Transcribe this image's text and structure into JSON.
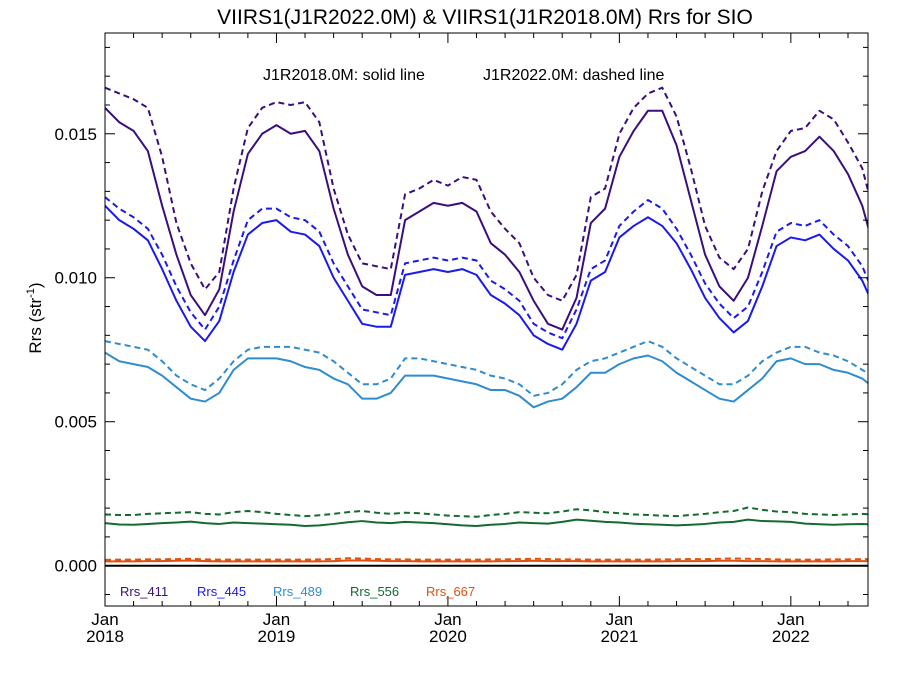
{
  "chart_data": {
    "type": "line",
    "title": "VIIRS1(J1R2022.0M) & VIIRS1(J1R2018.0M)  Rrs for SIO",
    "annotation_solid": "J1R2018.0M: solid line",
    "annotation_dashed": "J1R2022.0M: dashed line",
    "ylabel": "Rrs (str",
    "ylabel_superscript": "-1",
    "ylabel_close": ")",
    "xlim": [
      2018.0,
      2022.45
    ],
    "ylim": [
      -0.0014,
      0.0185
    ],
    "yticks": [
      {
        "value": 0.0,
        "label": "0.000"
      },
      {
        "value": 0.005,
        "label": "0.005"
      },
      {
        "value": 0.01,
        "label": "0.010"
      },
      {
        "value": 0.015,
        "label": "0.015"
      }
    ],
    "xticks": [
      {
        "value": 2018.0,
        "month": "Jan",
        "year": "2018"
      },
      {
        "value": 2019.0,
        "month": "Jan",
        "year": "2019"
      },
      {
        "value": 2020.0,
        "month": "Jan",
        "year": "2020"
      },
      {
        "value": 2021.0,
        "month": "Jan",
        "year": "2021"
      },
      {
        "value": 2022.0,
        "month": "Jan",
        "year": "2022"
      }
    ],
    "x_start_year": 2018,
    "x_step_months": 1,
    "series": [
      {
        "name": "Rrs_411",
        "version": "J1R2018.0M",
        "style": "solid",
        "color": "#3a0f7d",
        "values": [
          0.0159,
          0.0154,
          0.0151,
          0.0144,
          0.0125,
          0.0108,
          0.0094,
          0.0087,
          0.0096,
          0.0123,
          0.0143,
          0.015,
          0.0153,
          0.015,
          0.0151,
          0.0144,
          0.0124,
          0.0108,
          0.0097,
          0.0094,
          0.0094,
          0.012,
          0.0123,
          0.0126,
          0.0125,
          0.0126,
          0.0123,
          0.0112,
          0.0108,
          0.0102,
          0.0092,
          0.0084,
          0.0082,
          0.0093,
          0.0119,
          0.0124,
          0.0142,
          0.0151,
          0.0158,
          0.0158,
          0.0146,
          0.0127,
          0.0108,
          0.0097,
          0.0092,
          0.01,
          0.0118,
          0.0137,
          0.0142,
          0.0144,
          0.0149,
          0.0144,
          0.0136,
          0.0125,
          0.0107
        ]
      },
      {
        "name": "Rrs_411",
        "version": "J1R2022.0M",
        "style": "dashed",
        "color": "#3a0f7d",
        "values": [
          0.0166,
          0.0164,
          0.0162,
          0.0159,
          0.0142,
          0.0119,
          0.0105,
          0.0096,
          0.0102,
          0.0131,
          0.0152,
          0.0159,
          0.0161,
          0.016,
          0.0161,
          0.0154,
          0.0131,
          0.0115,
          0.0105,
          0.0104,
          0.0103,
          0.0129,
          0.0131,
          0.0134,
          0.0132,
          0.0135,
          0.0134,
          0.0123,
          0.0117,
          0.0112,
          0.01,
          0.0094,
          0.0092,
          0.0101,
          0.0128,
          0.0131,
          0.015,
          0.0159,
          0.0164,
          0.0166,
          0.0156,
          0.0138,
          0.0118,
          0.0107,
          0.0103,
          0.011,
          0.013,
          0.0144,
          0.0151,
          0.0152,
          0.0158,
          0.0155,
          0.0147,
          0.0138,
          0.0119
        ]
      },
      {
        "name": "Rrs_445",
        "version": "J1R2018.0M",
        "style": "solid",
        "color": "#1a1aee",
        "values": [
          0.0125,
          0.012,
          0.0117,
          0.0113,
          0.0103,
          0.0092,
          0.0083,
          0.0078,
          0.0085,
          0.0102,
          0.0115,
          0.0119,
          0.012,
          0.0116,
          0.0115,
          0.0111,
          0.01,
          0.0092,
          0.0084,
          0.0083,
          0.0083,
          0.0101,
          0.0102,
          0.0103,
          0.0102,
          0.0103,
          0.0101,
          0.0094,
          0.0091,
          0.0087,
          0.008,
          0.0077,
          0.0075,
          0.0084,
          0.0099,
          0.0102,
          0.0114,
          0.0118,
          0.0121,
          0.0118,
          0.0112,
          0.0103,
          0.0093,
          0.0086,
          0.0081,
          0.0085,
          0.0097,
          0.0111,
          0.0114,
          0.0113,
          0.0115,
          0.011,
          0.0106,
          0.0099,
          0.0088
        ]
      },
      {
        "name": "Rrs_445",
        "version": "J1R2022.0M",
        "style": "dashed",
        "color": "#1a1aee",
        "values": [
          0.0128,
          0.0124,
          0.0121,
          0.0117,
          0.0108,
          0.0097,
          0.0088,
          0.0082,
          0.009,
          0.0106,
          0.012,
          0.0124,
          0.0124,
          0.0121,
          0.012,
          0.0116,
          0.0105,
          0.0097,
          0.0089,
          0.0088,
          0.0087,
          0.0105,
          0.0106,
          0.0107,
          0.0106,
          0.0107,
          0.0106,
          0.0099,
          0.0096,
          0.0092,
          0.0084,
          0.0081,
          0.0079,
          0.0089,
          0.0103,
          0.0106,
          0.0118,
          0.0123,
          0.0127,
          0.0124,
          0.0117,
          0.0108,
          0.0098,
          0.0091,
          0.0086,
          0.009,
          0.0102,
          0.0116,
          0.0119,
          0.0118,
          0.012,
          0.0115,
          0.0111,
          0.0104,
          0.0092
        ]
      },
      {
        "name": "Rrs_489",
        "version": "J1R2018.0M",
        "style": "solid",
        "color": "#2e8ccf",
        "values": [
          0.0074,
          0.0071,
          0.007,
          0.0069,
          0.0066,
          0.0062,
          0.0058,
          0.0057,
          0.006,
          0.0068,
          0.0072,
          0.0072,
          0.0072,
          0.0071,
          0.0069,
          0.0068,
          0.0065,
          0.0063,
          0.0058,
          0.0058,
          0.006,
          0.0066,
          0.0066,
          0.0066,
          0.0065,
          0.0064,
          0.0063,
          0.0061,
          0.0061,
          0.0059,
          0.0055,
          0.0057,
          0.0058,
          0.0062,
          0.0067,
          0.0067,
          0.007,
          0.0072,
          0.0073,
          0.0071,
          0.0067,
          0.0064,
          0.0061,
          0.0058,
          0.0057,
          0.0061,
          0.0065,
          0.0071,
          0.0072,
          0.007,
          0.007,
          0.0068,
          0.0067,
          0.0065,
          0.0061
        ]
      },
      {
        "name": "Rrs_489",
        "version": "J1R2022.0M",
        "style": "dashed",
        "color": "#2e8ccf",
        "values": [
          0.0078,
          0.0077,
          0.0076,
          0.0075,
          0.0071,
          0.0066,
          0.0063,
          0.0061,
          0.0065,
          0.0071,
          0.0075,
          0.0076,
          0.0076,
          0.0076,
          0.0075,
          0.0074,
          0.0071,
          0.0067,
          0.0063,
          0.0063,
          0.0065,
          0.0072,
          0.0072,
          0.0071,
          0.007,
          0.0069,
          0.0068,
          0.0066,
          0.0065,
          0.0063,
          0.0059,
          0.006,
          0.0063,
          0.0068,
          0.0071,
          0.0072,
          0.0074,
          0.0076,
          0.0078,
          0.0076,
          0.0072,
          0.0069,
          0.0066,
          0.0063,
          0.0063,
          0.0066,
          0.0071,
          0.0074,
          0.0076,
          0.0076,
          0.0074,
          0.0073,
          0.0071,
          0.0068,
          0.0065
        ]
      },
      {
        "name": "Rrs_556",
        "version": "J1R2018.0M",
        "style": "solid",
        "color": "#136b2f",
        "values": [
          0.00148,
          0.00143,
          0.00142,
          0.00145,
          0.00148,
          0.0015,
          0.00153,
          0.00148,
          0.00145,
          0.0015,
          0.00148,
          0.00146,
          0.00144,
          0.00142,
          0.00138,
          0.0014,
          0.00145,
          0.00151,
          0.00155,
          0.0015,
          0.00148,
          0.00152,
          0.0015,
          0.00148,
          0.00144,
          0.0014,
          0.00138,
          0.00142,
          0.00145,
          0.0015,
          0.00148,
          0.00146,
          0.00152,
          0.0016,
          0.00156,
          0.00152,
          0.0015,
          0.00146,
          0.00144,
          0.00142,
          0.0014,
          0.00142,
          0.00145,
          0.0015,
          0.00152,
          0.0016,
          0.00155,
          0.00154,
          0.00152,
          0.00146,
          0.00144,
          0.00142,
          0.00144,
          0.00145,
          0.00142
        ]
      },
      {
        "name": "Rrs_556",
        "version": "J1R2022.0M",
        "style": "dashed",
        "color": "#136b2f",
        "values": [
          0.00178,
          0.00176,
          0.00176,
          0.0018,
          0.00182,
          0.00184,
          0.00186,
          0.0018,
          0.00178,
          0.00186,
          0.0019,
          0.00186,
          0.0018,
          0.00176,
          0.00172,
          0.00175,
          0.0018,
          0.00186,
          0.0019,
          0.00184,
          0.0018,
          0.00184,
          0.00182,
          0.00178,
          0.00174,
          0.00172,
          0.0017,
          0.00176,
          0.0018,
          0.00186,
          0.00184,
          0.00182,
          0.00188,
          0.00196,
          0.00192,
          0.00186,
          0.00182,
          0.00178,
          0.00176,
          0.00174,
          0.00172,
          0.00176,
          0.0018,
          0.00186,
          0.0019,
          0.00202,
          0.00194,
          0.00188,
          0.00186,
          0.0018,
          0.00178,
          0.00176,
          0.00178,
          0.0018,
          0.00176
        ]
      },
      {
        "name": "Rrs_667",
        "version": "J1R2018.0M",
        "style": "solid",
        "color": "#e0500e",
        "values": [
          0.00015,
          0.00015,
          0.00015,
          0.00016,
          0.00016,
          0.00017,
          0.00018,
          0.00016,
          0.00015,
          0.00015,
          0.00015,
          0.00015,
          0.00015,
          0.00015,
          0.00015,
          0.00015,
          0.00016,
          0.00018,
          0.00018,
          0.00017,
          0.00016,
          0.00016,
          0.00015,
          0.00015,
          0.00015,
          0.00015,
          0.00015,
          0.00015,
          0.00016,
          0.00016,
          0.00017,
          0.00016,
          0.00016,
          0.00016,
          0.00015,
          0.00015,
          0.00015,
          0.00015,
          0.00015,
          0.00015,
          0.00016,
          0.00016,
          0.00016,
          0.00017,
          0.00017,
          0.00016,
          0.00016,
          0.00015,
          0.00015,
          0.00015,
          0.00015,
          0.00015,
          0.00016,
          0.00016,
          0.00016
        ]
      },
      {
        "name": "Rrs_667",
        "version": "J1R2022.0M",
        "style": "dashed",
        "color": "#e0500e",
        "values": [
          0.0002,
          0.00021,
          0.00021,
          0.00022,
          0.00022,
          0.00023,
          0.00024,
          0.00022,
          0.00021,
          0.00021,
          0.00021,
          0.00021,
          0.00021,
          0.00021,
          0.00021,
          0.00022,
          0.00023,
          0.00026,
          0.00025,
          0.00023,
          0.00022,
          0.00022,
          0.00021,
          0.00021,
          0.00021,
          0.00021,
          0.00021,
          0.00022,
          0.00022,
          0.00023,
          0.00024,
          0.00023,
          0.00022,
          0.00022,
          0.00021,
          0.00021,
          0.00021,
          0.00021,
          0.00021,
          0.00022,
          0.00022,
          0.00023,
          0.00023,
          0.00024,
          0.00025,
          0.00024,
          0.00023,
          0.00022,
          0.00021,
          0.00021,
          0.00021,
          0.00022,
          0.00022,
          0.00023,
          0.00023
        ]
      }
    ],
    "reference_line": {
      "y": 0.0,
      "color": "#000000"
    },
    "legend": [
      {
        "label": "Rrs_411",
        "color": "#3a0f7d"
      },
      {
        "label": "Rrs_445",
        "color": "#1a1aee"
      },
      {
        "label": "Rrs_489",
        "color": "#2e8ccf"
      },
      {
        "label": "Rrs_556",
        "color": "#136b2f"
      },
      {
        "label": "Rrs_667",
        "color": "#e0500e"
      }
    ],
    "legend_position": "bottom-left, inside plot"
  }
}
